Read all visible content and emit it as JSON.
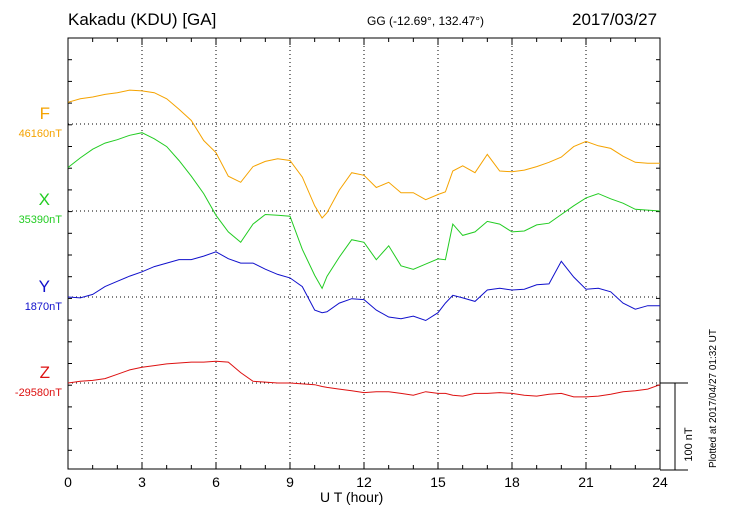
{
  "header": {
    "title": "Kakadu (KDU)  [GA]",
    "coords": "GG (-12.69°, 132.47°)",
    "date": "2017/03/27"
  },
  "footer": {
    "plotted": "Plotted at 2017/04/27 01:32 UT"
  },
  "chart_data": {
    "type": "line",
    "xlabel": "U T (hour)",
    "xlim": [
      0,
      24
    ],
    "x_ticks": [
      0,
      3,
      6,
      9,
      12,
      15,
      18,
      21,
      24
    ],
    "grid": true,
    "scale_bar": {
      "label": "100 nT",
      "value_nT": 100
    },
    "x": [
      0,
      0.5,
      1,
      1.5,
      2,
      2.5,
      3,
      3.5,
      4,
      4.5,
      5,
      5.5,
      6,
      6.5,
      7,
      7.5,
      8,
      8.5,
      9,
      9.5,
      10,
      10.3,
      10.5,
      11,
      11.5,
      12,
      12.5,
      13,
      13.5,
      14,
      14.5,
      15,
      15.3,
      15.6,
      16,
      16.5,
      17,
      17.5,
      18,
      18.5,
      19,
      19.5,
      20,
      20.5,
      21,
      21.5,
      22,
      22.5,
      23,
      23.5,
      24
    ],
    "series": [
      {
        "name": "F",
        "baseline_label": "46160nT",
        "baseline_nT": 46160,
        "color": "#f5a300",
        "values": [
          46185,
          46189,
          46191,
          46194,
          46196,
          46199,
          46198,
          46196,
          46189,
          46177,
          46164,
          46141,
          46127,
          46100,
          46093,
          46111,
          46117,
          46120,
          46118,
          46099,
          46066,
          46052,
          46058,
          46084,
          46104,
          46101,
          46087,
          46093,
          46081,
          46081,
          46073,
          46079,
          46082,
          46106,
          46112,
          46104,
          46125,
          46106,
          46105,
          46107,
          46111,
          46116,
          46122,
          46134,
          46140,
          46135,
          46132,
          46123,
          46116,
          46115,
          46115
        ]
      },
      {
        "name": "X",
        "baseline_label": "35390nT",
        "baseline_nT": 35390,
        "color": "#22cc22",
        "values": [
          35440,
          35451,
          35461,
          35468,
          35472,
          35477,
          35480,
          35473,
          35464,
          35448,
          35430,
          35410,
          35385,
          35366,
          35354,
          35375,
          35386,
          35385,
          35384,
          35346,
          35316,
          35301,
          35315,
          35337,
          35357,
          35354,
          35334,
          35350,
          35327,
          35323,
          35329,
          35335,
          35334,
          35375,
          35362,
          35366,
          35378,
          35375,
          35366,
          35367,
          35374,
          35376,
          35386,
          35396,
          35405,
          35410,
          35404,
          35399,
          35392,
          35391,
          35390
        ]
      },
      {
        "name": "Y",
        "baseline_label": "1870nT",
        "baseline_nT": 1870,
        "color": "#1010cc",
        "values": [
          1870,
          1869,
          1873,
          1882,
          1888,
          1894,
          1899,
          1905,
          1909,
          1913,
          1913,
          1917,
          1922,
          1914,
          1909,
          1909,
          1902,
          1896,
          1892,
          1882,
          1855,
          1852,
          1853,
          1863,
          1868,
          1867,
          1855,
          1847,
          1845,
          1848,
          1843,
          1852,
          1863,
          1872,
          1869,
          1865,
          1878,
          1880,
          1878,
          1879,
          1884,
          1885,
          1911,
          1893,
          1879,
          1880,
          1876,
          1863,
          1856,
          1860,
          1860
        ]
      },
      {
        "name": "Z",
        "baseline_label": "-29580nT",
        "baseline_nT": -29580,
        "color": "#dd1111",
        "values": [
          -29580,
          -29578,
          -29577,
          -29575,
          -29570,
          -29565,
          -29562,
          -29560,
          -29558,
          -29557,
          -29556,
          -29556,
          -29555,
          -29556,
          -29568,
          -29578,
          -29579,
          -29580,
          -29580,
          -29581,
          -29582,
          -29584,
          -29585,
          -29587,
          -29589,
          -29591,
          -29590,
          -29590,
          -29592,
          -29594,
          -29590,
          -29592,
          -29592,
          -29594,
          -29595,
          -29592,
          -29592,
          -29591,
          -29592,
          -29594,
          -29595,
          -29593,
          -29592,
          -29596,
          -29596,
          -29595,
          -29593,
          -29590,
          -29589,
          -29587,
          -29582
        ]
      }
    ]
  }
}
